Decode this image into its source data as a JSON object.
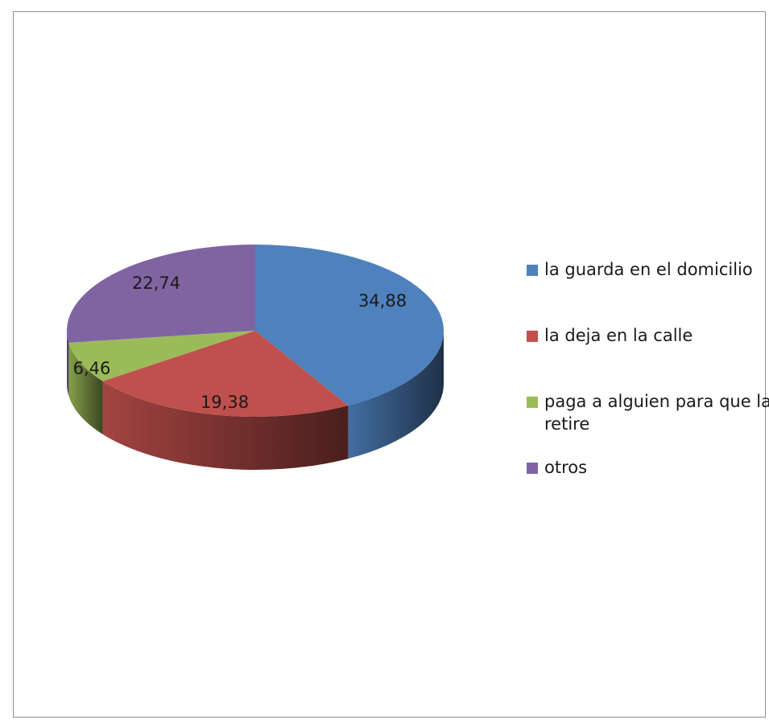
{
  "chart_data": {
    "type": "pie",
    "title": "",
    "slices": [
      {
        "label": "la guarda en el domicilio",
        "value": 34.88,
        "display": "34,88",
        "color": "#4F81BD"
      },
      {
        "label": "la deja en la calle",
        "value": 19.38,
        "display": "19,38",
        "color": "#C0504D"
      },
      {
        "label": "paga a alguien para que la retire",
        "value": 6.46,
        "display": "6,46",
        "color": "#9BBB59"
      },
      {
        "label": "otros",
        "value": 22.74,
        "display": "22,74",
        "color": "#8064A2"
      }
    ],
    "legend_position": "right"
  }
}
